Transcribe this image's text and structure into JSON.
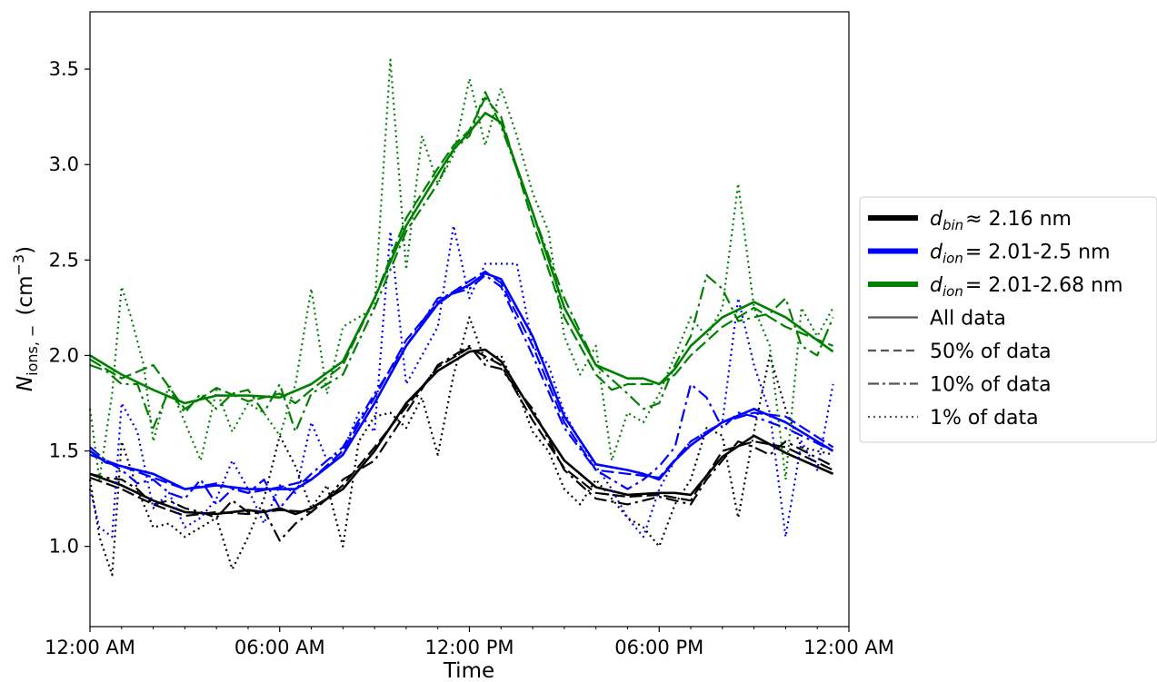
{
  "chart_data": {
    "type": "line",
    "xlabel": "Time",
    "ylabel": "N_ions,− (cm⁻³)",
    "ylabel_parts": {
      "main": "N",
      "sub": "ions, −",
      "paren": "(cm",
      "sup": "−3",
      "close": ")"
    },
    "x_unit": "hour of day",
    "xlim": [
      0,
      24
    ],
    "ylim": [
      0.58,
      3.8
    ],
    "x_ticks": [
      0,
      6,
      12,
      18,
      24
    ],
    "x_tick_labels": [
      "12:00 AM",
      "06:00 AM",
      "12:00 PM",
      "06:00 PM",
      "12:00 AM"
    ],
    "y_ticks": [
      1.0,
      1.5,
      2.0,
      2.5,
      3.0,
      3.5
    ],
    "y_tick_labels": [
      "1.0",
      "1.5",
      "2.0",
      "2.5",
      "3.0",
      "3.5"
    ],
    "grid": false,
    "legend_position": "outside-right",
    "legend": [
      {
        "label_main": "d",
        "label_sub": "bin",
        "label_rest": "≈  2.16 nm",
        "color": "#000000",
        "style": "thick"
      },
      {
        "label_main": "d",
        "label_sub": "ion",
        "label_rest": "= 2.01-2.5 nm",
        "color": "#0000ff",
        "style": "thick"
      },
      {
        "label_main": "d",
        "label_sub": "ion",
        "label_rest": "= 2.01-2.68 nm",
        "color": "#008000",
        "style": "thick"
      },
      {
        "label": "All data",
        "color": "#555555",
        "style": "solid"
      },
      {
        "label": "50% of data",
        "color": "#555555",
        "style": "dashed"
      },
      {
        "label": "10% of data",
        "color": "#555555",
        "style": "dashdot"
      },
      {
        "label": "1% of data",
        "color": "#555555",
        "style": "dotted"
      }
    ],
    "series": [
      {
        "group": "black",
        "subset": "All data",
        "color": "#000000",
        "dash": "solid",
        "x": [
          0,
          1,
          2,
          3,
          4,
          5,
          5.5,
          6,
          6.5,
          7,
          7.5,
          8,
          9,
          10,
          11,
          11.5,
          12,
          12.5,
          13,
          14,
          15,
          16,
          17,
          18,
          18.5,
          19,
          20,
          21,
          22,
          23.5
        ],
        "y": [
          1.38,
          1.32,
          1.24,
          1.18,
          1.17,
          1.19,
          1.18,
          1.2,
          1.17,
          1.2,
          1.25,
          1.3,
          1.5,
          1.75,
          1.92,
          1.97,
          2.02,
          2.03,
          1.97,
          1.7,
          1.45,
          1.31,
          1.27,
          1.28,
          1.28,
          1.27,
          1.47,
          1.58,
          1.49,
          1.38
        ]
      },
      {
        "group": "black",
        "subset": "50% of data",
        "color": "#000000",
        "dash": "dashed",
        "x": [
          0,
          1,
          2,
          3,
          4,
          5,
          6,
          7,
          8,
          9,
          10,
          11,
          12,
          13,
          14,
          15,
          16,
          17,
          18,
          19,
          20,
          21,
          22,
          23.5
        ],
        "y": [
          1.36,
          1.3,
          1.22,
          1.16,
          1.18,
          1.17,
          1.19,
          1.18,
          1.32,
          1.52,
          1.73,
          1.94,
          2.04,
          1.95,
          1.66,
          1.41,
          1.28,
          1.26,
          1.27,
          1.24,
          1.5,
          1.55,
          1.52,
          1.4
        ]
      },
      {
        "group": "black",
        "subset": "10% of data",
        "color": "#000000",
        "dash": "dashdot",
        "x": [
          0,
          0.5,
          1,
          1.5,
          2,
          2.5,
          3,
          3.5,
          4,
          4.5,
          5,
          5.5,
          6,
          6.5,
          7,
          7.5,
          8,
          9,
          10,
          11,
          12,
          12.5,
          13,
          14,
          15,
          16,
          17,
          18,
          19,
          19.5,
          20,
          20.5,
          21,
          21.5,
          22,
          23.5
        ],
        "y": [
          1.38,
          1.36,
          1.35,
          1.3,
          1.22,
          1.24,
          1.2,
          1.18,
          1.15,
          1.24,
          1.18,
          1.19,
          1.03,
          1.12,
          1.18,
          1.25,
          1.35,
          1.45,
          1.7,
          1.95,
          2.05,
          1.95,
          1.93,
          1.72,
          1.4,
          1.25,
          1.22,
          1.26,
          1.22,
          1.35,
          1.45,
          1.55,
          1.52,
          1.48,
          1.55,
          1.42
        ]
      },
      {
        "group": "black",
        "subset": "1% of data",
        "color": "#000000",
        "dash": "dotted",
        "x": [
          0,
          0.3,
          0.7,
          1,
          1.5,
          2,
          2.5,
          3,
          3.5,
          4,
          4.5,
          5,
          5.5,
          6,
          6.5,
          7,
          7.5,
          8,
          8.5,
          9,
          9.5,
          10,
          10.5,
          11,
          11.5,
          12,
          12.5,
          13,
          13.5,
          14,
          14.5,
          15,
          15.5,
          16,
          16.5,
          17,
          17.5,
          18,
          18.5,
          19,
          19.5,
          20,
          20.5,
          21,
          21.5,
          22,
          22.5,
          23.5
        ],
        "y": [
          1.35,
          1.05,
          0.85,
          1.55,
          1.3,
          1.1,
          1.12,
          1.05,
          1.1,
          1.15,
          0.88,
          1.05,
          1.25,
          1.58,
          1.42,
          1.2,
          1.32,
          1.0,
          1.55,
          1.68,
          1.7,
          1.62,
          1.78,
          1.48,
          1.9,
          2.2,
          1.97,
          2.0,
          1.82,
          1.6,
          1.5,
          1.3,
          1.22,
          1.35,
          1.25,
          1.15,
          1.1,
          1.0,
          1.22,
          1.35,
          1.62,
          1.58,
          1.15,
          1.6,
          2.0,
          1.72,
          1.52,
          1.48
        ]
      },
      {
        "group": "blue",
        "subset": "All data",
        "color": "#0000ff",
        "dash": "solid",
        "x": [
          0,
          0.5,
          1,
          2,
          3,
          4,
          5,
          6,
          6.5,
          7,
          8,
          9,
          10,
          11,
          11.5,
          12,
          12.5,
          13,
          14,
          15,
          16,
          17,
          17.5,
          18,
          18.5,
          19,
          20,
          21,
          22,
          23.5
        ],
        "y": [
          1.5,
          1.44,
          1.42,
          1.38,
          1.3,
          1.32,
          1.3,
          1.3,
          1.3,
          1.35,
          1.48,
          1.75,
          2.05,
          2.27,
          2.33,
          2.37,
          2.43,
          2.4,
          2.1,
          1.68,
          1.43,
          1.4,
          1.38,
          1.35,
          1.45,
          1.53,
          1.65,
          1.72,
          1.65,
          1.5
        ]
      },
      {
        "group": "blue",
        "subset": "50% of data",
        "color": "#0000ff",
        "dash": "dashed",
        "x": [
          0,
          1,
          2,
          3,
          4,
          5,
          6,
          7,
          8,
          9,
          10,
          11,
          12,
          12.5,
          13,
          14,
          15,
          16,
          17,
          18,
          19,
          20,
          21,
          22,
          23.5
        ],
        "y": [
          1.48,
          1.42,
          1.36,
          1.3,
          1.33,
          1.28,
          1.31,
          1.35,
          1.5,
          1.78,
          2.08,
          2.28,
          2.39,
          2.44,
          2.38,
          2.05,
          1.65,
          1.4,
          1.38,
          1.36,
          1.55,
          1.65,
          1.7,
          1.68,
          1.52
        ]
      },
      {
        "group": "blue",
        "subset": "10% of data",
        "color": "#0000ff",
        "dash": "dashdot",
        "x": [
          0,
          0.5,
          1,
          1.5,
          2,
          2.5,
          3,
          3.5,
          4,
          4.5,
          5,
          5.5,
          6,
          6.5,
          7,
          8,
          9,
          10,
          11,
          12,
          12.5,
          13,
          14,
          15,
          16,
          17,
          17.5,
          18,
          18.5,
          19,
          19.5,
          20,
          20.5,
          21,
          22,
          23.5
        ],
        "y": [
          1.52,
          1.45,
          1.4,
          1.33,
          1.35,
          1.28,
          1.25,
          1.35,
          1.22,
          1.3,
          1.28,
          1.35,
          1.2,
          1.3,
          1.38,
          1.52,
          1.8,
          2.05,
          2.3,
          2.35,
          2.42,
          2.36,
          2.0,
          1.62,
          1.4,
          1.3,
          1.35,
          1.42,
          1.52,
          1.85,
          1.78,
          1.62,
          1.7,
          1.68,
          1.62,
          1.5
        ]
      },
      {
        "group": "blue",
        "subset": "1% of data",
        "color": "#0000ff",
        "dash": "dotted",
        "x": [
          0,
          0.3,
          0.7,
          1,
          1.5,
          2,
          2.5,
          3,
          3.5,
          4,
          4.5,
          5,
          5.5,
          6,
          6.5,
          7,
          7.5,
          8,
          8.5,
          9,
          9.5,
          10,
          10.5,
          11,
          11.5,
          12,
          12.5,
          13,
          13.5,
          14,
          14.5,
          15,
          15.5,
          16,
          16.5,
          17,
          17.5,
          18,
          18.5,
          19,
          19.5,
          20,
          20.5,
          21,
          21.5,
          22,
          22.5,
          23,
          23.5
        ],
        "y": [
          1.3,
          1.1,
          1.05,
          1.75,
          1.6,
          1.2,
          1.28,
          1.1,
          1.15,
          1.25,
          1.45,
          1.3,
          1.12,
          1.32,
          1.28,
          1.65,
          1.45,
          1.5,
          1.7,
          1.6,
          2.65,
          1.85,
          2.0,
          2.15,
          2.68,
          2.3,
          2.48,
          2.48,
          2.48,
          2.05,
          1.95,
          1.7,
          1.55,
          1.42,
          1.3,
          1.15,
          1.05,
          1.3,
          1.45,
          1.55,
          1.6,
          1.65,
          2.3,
          1.95,
          1.7,
          1.05,
          1.55,
          1.4,
          1.85
        ]
      },
      {
        "group": "green",
        "subset": "All data",
        "color": "#008000",
        "dash": "solid",
        "x": [
          0,
          1,
          2,
          3,
          4,
          5,
          6,
          7,
          8,
          9,
          10,
          11,
          11.5,
          12,
          12.5,
          13,
          14,
          15,
          16,
          17,
          17.5,
          18,
          18.5,
          19,
          20,
          21,
          22,
          23.5
        ],
        "y": [
          2.0,
          1.9,
          1.82,
          1.75,
          1.79,
          1.79,
          1.78,
          1.85,
          1.97,
          2.3,
          2.68,
          2.95,
          3.08,
          3.17,
          3.27,
          3.22,
          2.75,
          2.25,
          1.95,
          1.88,
          1.88,
          1.85,
          1.93,
          2.05,
          2.2,
          2.28,
          2.2,
          2.02
        ]
      },
      {
        "group": "green",
        "subset": "50% of data",
        "color": "#008000",
        "dash": "dashed",
        "x": [
          0,
          1,
          2,
          3,
          4,
          5,
          6,
          6.5,
          7,
          8,
          9,
          10,
          11,
          11.5,
          12,
          12.5,
          13,
          14,
          15,
          16,
          16.5,
          17,
          18,
          18.5,
          19,
          20,
          21,
          22,
          23.5
        ],
        "y": [
          1.98,
          1.88,
          1.95,
          1.72,
          1.83,
          1.76,
          1.8,
          1.75,
          1.82,
          1.95,
          2.3,
          2.72,
          2.98,
          3.1,
          3.18,
          3.35,
          3.25,
          2.7,
          2.2,
          1.9,
          1.82,
          1.85,
          1.85,
          1.9,
          2.0,
          2.15,
          2.25,
          2.15,
          2.05
        ]
      },
      {
        "group": "green",
        "subset": "10% of data",
        "color": "#008000",
        "dash": "dashdot",
        "x": [
          0,
          0.5,
          1,
          1.5,
          2,
          2.5,
          3,
          3.5,
          4,
          4.5,
          5,
          5.5,
          6,
          6.5,
          7,
          7.5,
          8,
          9,
          10,
          11,
          11.5,
          12,
          12.5,
          13,
          14,
          15,
          16,
          17,
          17.5,
          18,
          18.5,
          19,
          19.5,
          20,
          20.5,
          21,
          21.5,
          22,
          22.5,
          23,
          23.5
        ],
        "y": [
          1.95,
          1.92,
          1.85,
          1.85,
          1.62,
          1.82,
          1.7,
          1.8,
          1.72,
          1.8,
          1.82,
          1.7,
          1.85,
          1.6,
          1.8,
          1.85,
          1.9,
          2.25,
          2.65,
          2.9,
          3.08,
          3.15,
          3.38,
          3.2,
          2.75,
          2.3,
          1.95,
          1.8,
          1.72,
          1.75,
          1.95,
          2.1,
          2.42,
          2.35,
          2.18,
          2.2,
          2.22,
          2.3,
          2.05,
          2.0,
          2.2
        ]
      },
      {
        "group": "green",
        "subset": "1% of data",
        "color": "#008000",
        "dash": "dotted",
        "x": [
          0,
          0.3,
          0.7,
          1,
          1.3,
          1.7,
          2,
          2.5,
          3,
          3.5,
          4,
          4.5,
          5,
          5.5,
          6,
          6.5,
          7,
          7.5,
          8,
          8.5,
          9,
          9.5,
          10,
          10.5,
          11,
          11.5,
          12,
          12.5,
          13,
          13.5,
          14,
          14.5,
          15,
          15.5,
          16,
          16.5,
          17,
          17.5,
          18,
          18.5,
          19,
          19.5,
          20,
          20.5,
          21,
          21.5,
          22,
          22.5,
          23,
          23.5
        ],
        "y": [
          1.72,
          1.35,
          1.8,
          2.36,
          2.2,
          1.95,
          1.55,
          1.85,
          1.65,
          1.45,
          1.82,
          1.6,
          1.75,
          1.7,
          1.58,
          1.85,
          2.35,
          1.8,
          2.15,
          2.2,
          2.25,
          3.55,
          2.45,
          3.15,
          2.9,
          3.05,
          3.45,
          3.1,
          3.4,
          3.15,
          2.85,
          2.65,
          2.1,
          1.9,
          2.05,
          1.45,
          1.7,
          1.65,
          1.8,
          2.0,
          2.2,
          2.1,
          2.25,
          2.9,
          2.25,
          2.05,
          1.35,
          2.25,
          2.1,
          2.25
        ]
      }
    ]
  }
}
